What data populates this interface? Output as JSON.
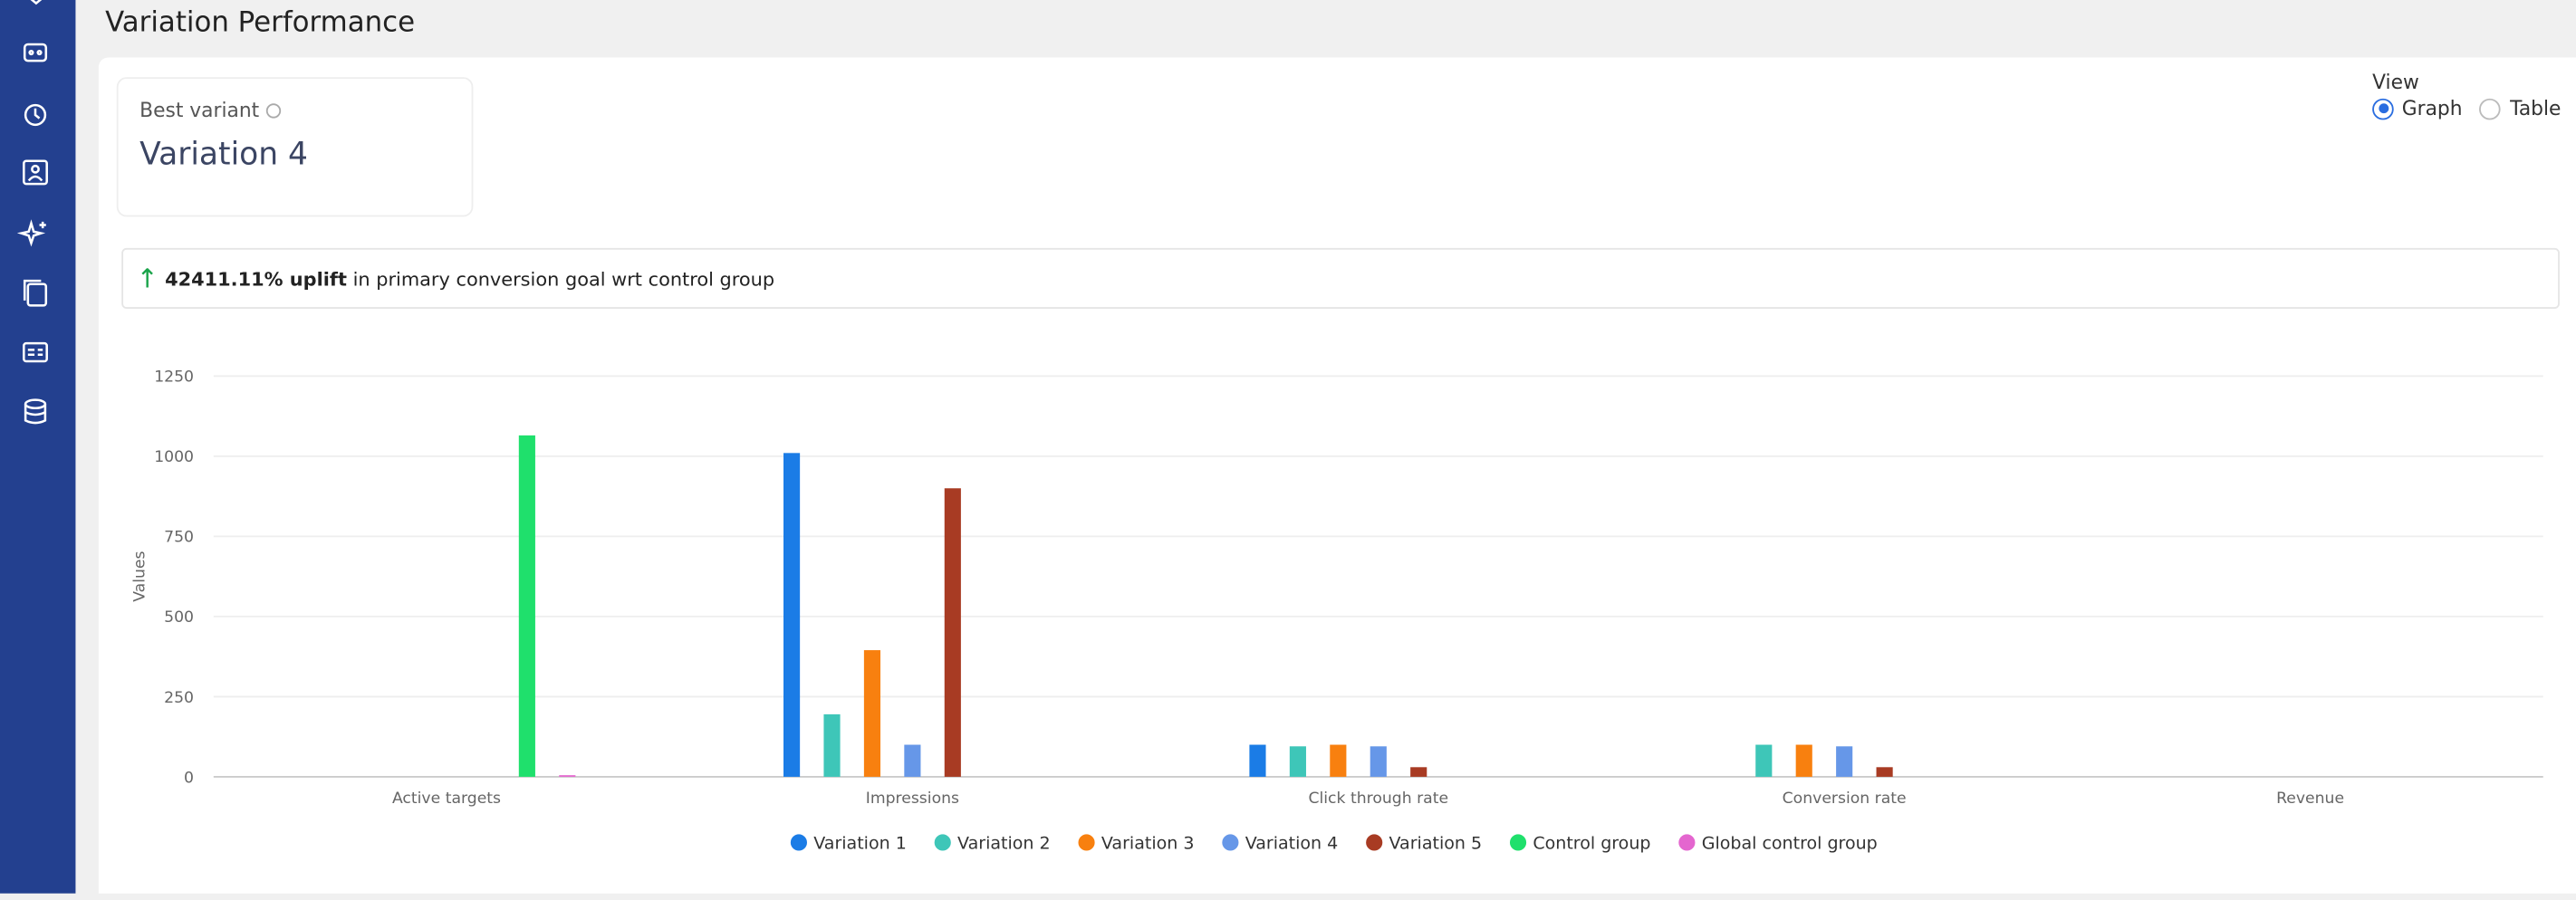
{
  "header": {
    "title": "Variation Performance"
  },
  "best_variant": {
    "label": "Best variant",
    "value": "Variation 4"
  },
  "view": {
    "label": "View",
    "options": [
      "Graph",
      "Table"
    ],
    "selected": "Graph"
  },
  "uplift": {
    "value": "42411.11% uplift",
    "text": "in primary conversion goal wrt control group"
  },
  "chart_data": {
    "type": "bar",
    "y_label": "Values",
    "categories": [
      "Active targets",
      "Impressions",
      "Click through rate",
      "Conversion rate",
      "Revenue"
    ],
    "series": [
      {
        "name": "Variation 1",
        "color": "#1b7ce6",
        "values": [
          0,
          1010,
          100,
          0,
          0
        ]
      },
      {
        "name": "Variation 2",
        "color": "#3ec6b8",
        "values": [
          0,
          195,
          95,
          100,
          0
        ]
      },
      {
        "name": "Variation 3",
        "color": "#f8800f",
        "values": [
          0,
          395,
          100,
          100,
          0
        ]
      },
      {
        "name": "Variation 4",
        "color": "#6697e8",
        "values": [
          0,
          100,
          95,
          95,
          0
        ]
      },
      {
        "name": "Variation 5",
        "color": "#a83b23",
        "values": [
          0,
          900,
          30,
          30,
          0
        ]
      },
      {
        "name": "Control group",
        "color": "#1fe06c",
        "values": [
          1065,
          0,
          0,
          0,
          0
        ]
      },
      {
        "name": "Global control group",
        "color": "#e466cf",
        "values": [
          5,
          0,
          0,
          0,
          0
        ]
      }
    ],
    "ylim": [
      0,
      1250
    ],
    "yticks": [
      0,
      250,
      500,
      750,
      1000,
      1250
    ],
    "grid": true
  }
}
